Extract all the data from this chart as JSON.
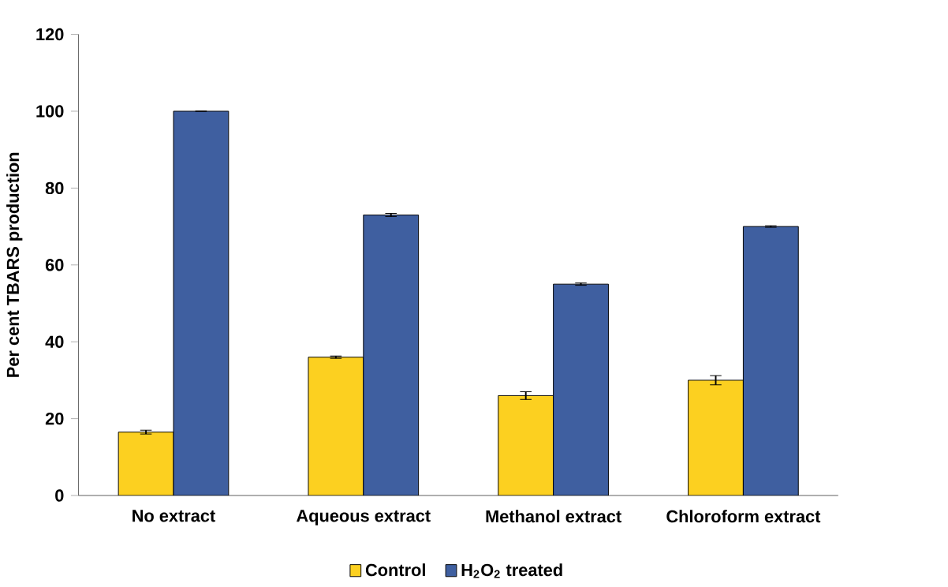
{
  "chart_data": {
    "type": "bar",
    "ylabel": "Per cent TBARS production",
    "categories": [
      "No extract",
      "Aqueous extract",
      "Methanol extract",
      "Chloroform extract"
    ],
    "series": [
      {
        "name": "Control",
        "color": "#fcd020",
        "values": [
          16.5,
          36,
          26,
          30
        ],
        "errors": [
          0.5,
          0.3,
          1,
          1.2
        ]
      },
      {
        "name": "H$_{2}$O$_{2}$ treated",
        "color": "#3f5fa0",
        "values": [
          100,
          73,
          55,
          70
        ],
        "errors": [
          0,
          0.4,
          0.3,
          0.2
        ]
      }
    ],
    "ylim": [
      0,
      120
    ],
    "yticks": [
      0,
      20,
      40,
      60,
      80,
      100,
      120
    ],
    "grid": false,
    "legend": "bottom"
  }
}
